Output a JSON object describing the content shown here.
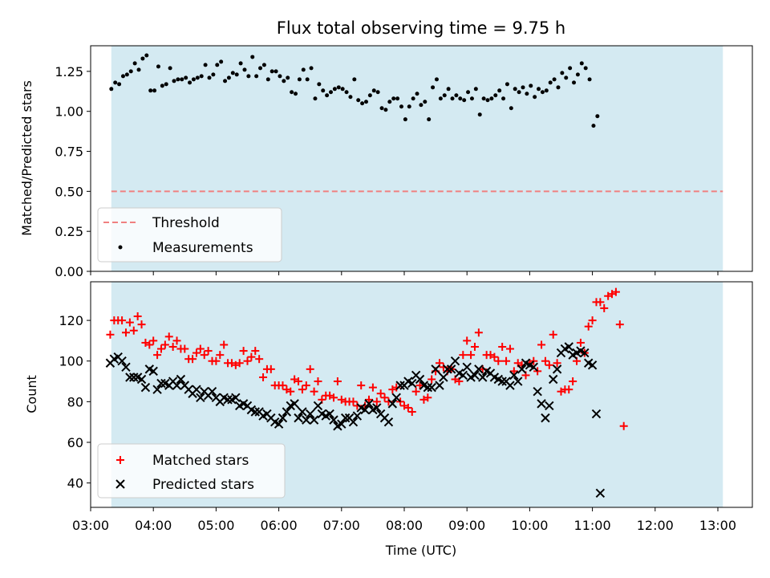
{
  "title": "Flux total observing time = 9.75 h",
  "colors": {
    "shade": "#add8e6",
    "threshold": "#f08080",
    "matched": "#ff0000",
    "predicted": "#000000",
    "measurement": "#000000"
  },
  "chart_data": [
    {
      "type": "scatter",
      "panel": "top",
      "title": "Flux total observing time = 9.75 h",
      "xlabel": "",
      "ylabel": "Matched/Predicted stars",
      "xlim": [
        3.0,
        13.55
      ],
      "ylim": [
        0.0,
        1.41
      ],
      "yticks": [
        0.0,
        0.25,
        0.5,
        0.75,
        1.0,
        1.25
      ],
      "yticklabels": [
        "0.00",
        "0.25",
        "0.50",
        "0.75",
        "1.00",
        "1.25"
      ],
      "shaded_span": [
        3.33,
        13.08
      ],
      "threshold": 0.5,
      "legend": {
        "placement": "lower-left",
        "entries": [
          "Threshold",
          "Measurements"
        ]
      },
      "series": [
        {
          "name": "Measurements",
          "x_start": 3.33,
          "x_step": 0.0625,
          "y": [
            1.14,
            1.18,
            1.17,
            1.22,
            1.23,
            1.25,
            1.3,
            1.26,
            1.33,
            1.35,
            1.13,
            1.13,
            1.28,
            1.16,
            1.17,
            1.27,
            1.19,
            1.2,
            1.2,
            1.21,
            1.18,
            1.2,
            1.21,
            1.22,
            1.29,
            1.21,
            1.23,
            1.29,
            1.31,
            1.19,
            1.21,
            1.24,
            1.23,
            1.3,
            1.26,
            1.22,
            1.34,
            1.22,
            1.27,
            1.29,
            1.2,
            1.25,
            1.25,
            1.22,
            1.19,
            1.21,
            1.12,
            1.11,
            1.2,
            1.26,
            1.2,
            1.27,
            1.08,
            1.17,
            1.13,
            1.1,
            1.12,
            1.14,
            1.15,
            1.14,
            1.12,
            1.09,
            1.2,
            1.07,
            1.05,
            1.06,
            1.1,
            1.13,
            1.12,
            1.02,
            1.01,
            1.06,
            1.08,
            1.08,
            1.03,
            0.95,
            1.03,
            1.08,
            1.11,
            1.04,
            1.06,
            0.95,
            1.15,
            1.2,
            1.08,
            1.1,
            1.14,
            1.08,
            1.1,
            1.08,
            1.07,
            1.12,
            1.08,
            1.14,
            0.98,
            1.08,
            1.07,
            1.08,
            1.1,
            1.13,
            1.08,
            1.17,
            1.02,
            1.14,
            1.12,
            1.15,
            1.11,
            1.16,
            1.09,
            1.14,
            1.12,
            1.13,
            1.18,
            1.2,
            1.15,
            1.24,
            1.21,
            1.27,
            1.18,
            1.23,
            1.3,
            1.27,
            1.2,
            0.91,
            0.97
          ]
        }
      ]
    },
    {
      "type": "scatter",
      "panel": "bottom",
      "xlabel": "Time (UTC)",
      "ylabel": "Count",
      "xlim": [
        3.0,
        13.55
      ],
      "ylim": [
        28,
        139
      ],
      "xticks": [
        3,
        4,
        5,
        6,
        7,
        8,
        9,
        10,
        11,
        12,
        13
      ],
      "xticklabels": [
        "03:00",
        "04:00",
        "05:00",
        "06:00",
        "07:00",
        "08:00",
        "09:00",
        "10:00",
        "11:00",
        "12:00",
        "13:00"
      ],
      "yticks": [
        40,
        60,
        80,
        100,
        120
      ],
      "yticklabels": [
        "40",
        "60",
        "80",
        "100",
        "120"
      ],
      "shaded_span": [
        3.33,
        13.08
      ],
      "legend": {
        "placement": "lower-left",
        "entries": [
          "Matched stars",
          "Predicted stars"
        ]
      },
      "series": [
        {
          "name": "Matched stars",
          "marker": "plus",
          "x_start": 3.0,
          "x_step": 0.0625,
          "y": [
            null,
            null,
            null,
            null,
            null,
            113,
            120,
            120,
            120,
            114,
            119,
            115,
            122,
            118,
            109,
            108,
            110,
            103,
            106,
            108,
            112,
            107,
            110,
            106,
            106,
            101,
            101,
            104,
            106,
            103,
            105,
            100,
            100,
            103,
            108,
            99,
            99,
            98,
            99,
            105,
            100,
            102,
            105,
            101,
            92,
            96,
            96,
            88,
            88,
            88,
            86,
            85,
            91,
            90,
            86,
            88,
            96,
            85,
            90,
            81,
            83,
            83,
            82,
            90,
            81,
            80,
            80,
            80,
            78,
            88,
            78,
            81,
            87,
            80,
            84,
            82,
            80,
            86,
            87,
            80,
            78,
            77,
            75,
            85,
            88,
            81,
            82,
            91,
            95,
            99,
            97,
            95,
            96,
            91,
            90,
            103,
            110,
            103,
            107,
            114,
            96,
            103,
            103,
            102,
            100,
            107,
            100,
            106,
            95,
            99,
            98,
            93,
            99,
            100,
            95,
            108,
            100,
            98,
            113,
            99,
            85,
            86,
            86,
            90,
            100,
            109,
            104,
            117,
            120,
            129,
            129,
            126,
            132,
            133,
            134,
            118,
            68,
            null
          ]
        },
        {
          "name": "Predicted stars",
          "marker": "x",
          "x_start": 3.0,
          "x_step": 0.0625,
          "y": [
            null,
            null,
            null,
            null,
            null,
            99,
            101,
            102,
            100,
            97,
            92,
            92,
            92,
            91,
            87,
            96,
            95,
            86,
            89,
            89,
            88,
            90,
            88,
            91,
            88,
            86,
            84,
            86,
            82,
            85,
            83,
            85,
            82,
            80,
            82,
            81,
            81,
            82,
            78,
            79,
            78,
            76,
            75,
            75,
            73,
            74,
            72,
            70,
            69,
            72,
            75,
            78,
            79,
            72,
            75,
            71,
            74,
            71,
            78,
            74,
            73,
            74,
            71,
            68,
            69,
            72,
            72,
            70,
            73,
            77,
            76,
            79,
            76,
            77,
            74,
            72,
            70,
            79,
            82,
            88,
            88,
            90,
            89,
            93,
            91,
            88,
            87,
            87,
            96,
            88,
            92,
            96,
            96,
            100,
            94,
            93,
            97,
            92,
            93,
            96,
            92,
            95,
            94,
            92,
            91,
            90,
            90,
            88,
            93,
            90,
            96,
            99,
            98,
            97,
            85,
            79,
            72,
            78,
            91,
            96,
            104,
            106,
            107,
            103,
            104,
            105,
            104,
            99,
            98,
            74,
            35,
            null,
            null
          ]
        }
      ]
    }
  ]
}
